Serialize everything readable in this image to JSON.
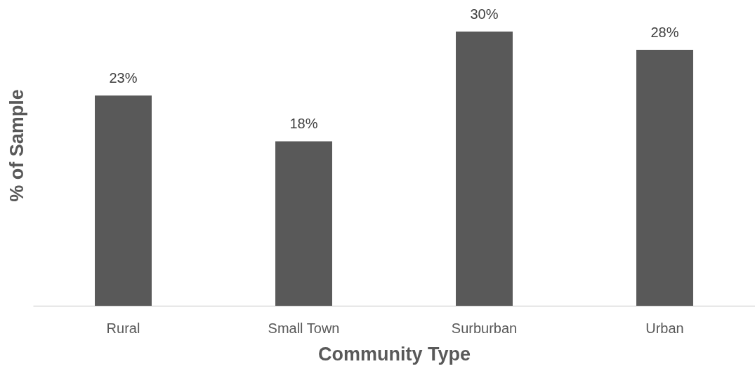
{
  "chart_data": {
    "type": "bar",
    "xlabel": "Community Type",
    "ylabel": "% of Sample",
    "categories": [
      "Rural",
      "Small Town",
      "Surburban",
      "Urban"
    ],
    "values": [
      23,
      18,
      30,
      28
    ],
    "color": "#595959",
    "value_labels": [
      "23%",
      "18%",
      "30%",
      "28%"
    ]
  }
}
